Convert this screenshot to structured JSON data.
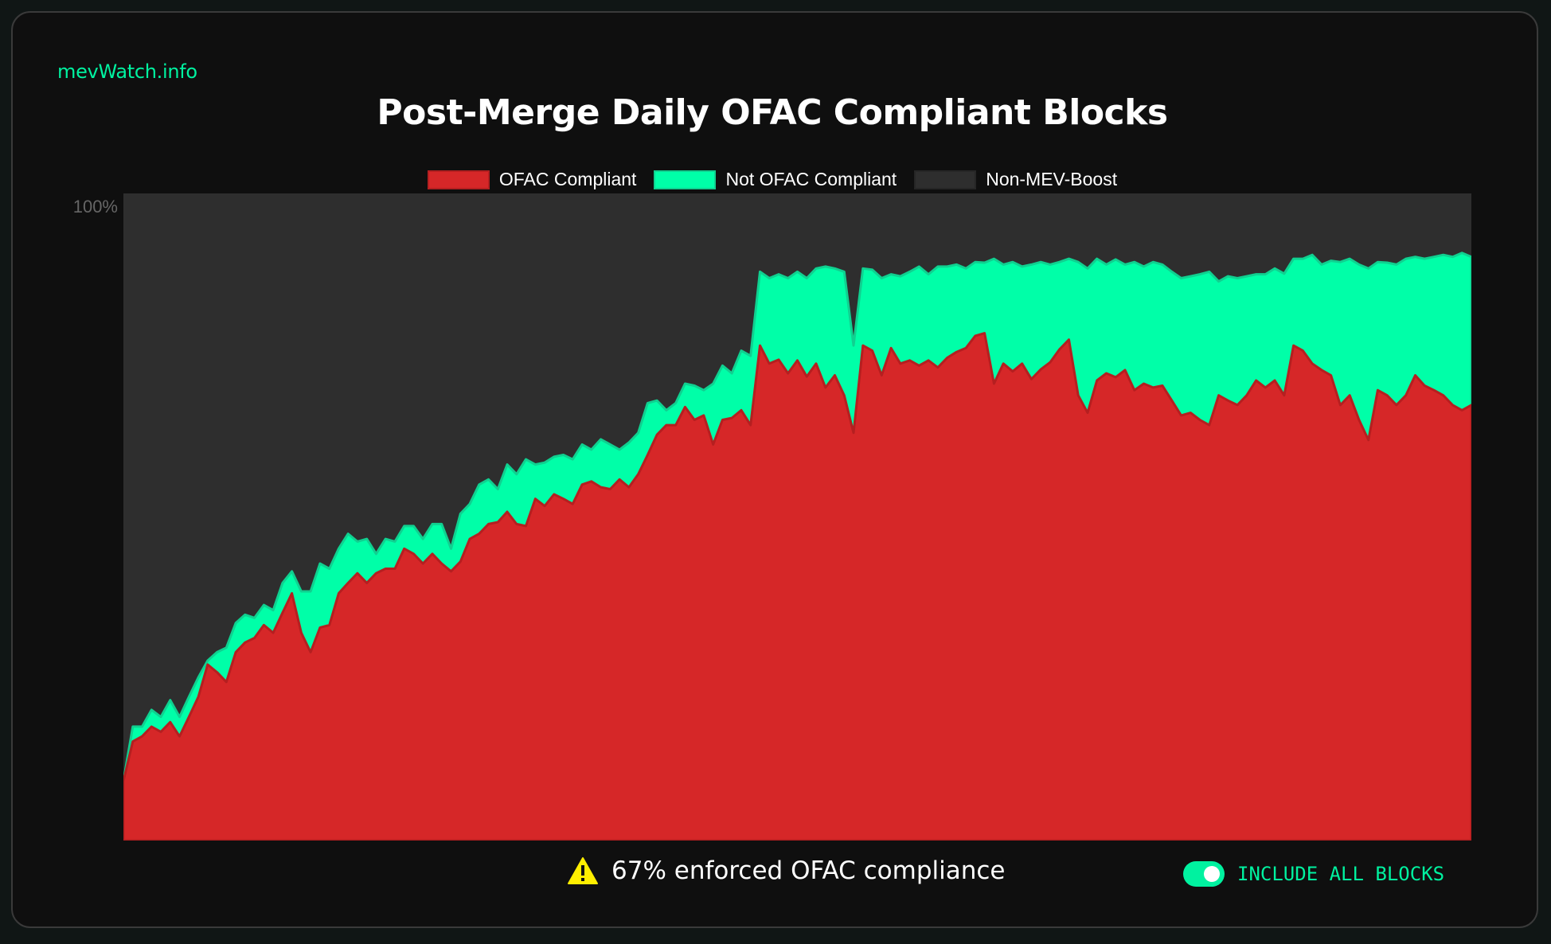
{
  "brand": "mevWatch.info",
  "footer": {
    "warning_icon": "warning-triangle-icon",
    "note": "67% enforced OFAC compliance",
    "toggle_label": "INCLUDE ALL BLOCKS",
    "toggle_on": true
  },
  "colors": {
    "ofac": "#d62728",
    "not_ofac": "#00ffa8",
    "non_mev": "#2e2e2e",
    "accent": "#00f2a0"
  },
  "chart_data": {
    "type": "area",
    "stacked": true,
    "title": "Post-Merge Daily OFAC Compliant Blocks",
    "xlabel": "",
    "ylabel": "",
    "ylim": [
      0,
      100
    ],
    "y_ticks": [
      "100%"
    ],
    "legend_position": "top-center",
    "legend": [
      "OFAC Compliant",
      "Not OFAC Compliant",
      "Non-MEV-Boost"
    ],
    "x": "day index 1..145",
    "series": [
      {
        "name": "OFAC Compliant",
        "values": [
          9.2,
          15.3,
          16.1,
          17.6,
          16.8,
          18.3,
          16.1,
          19.1,
          22.2,
          27.2,
          26.0,
          24.5,
          29.1,
          30.6,
          31.3,
          33.3,
          32.1,
          35.2,
          38.2,
          32.1,
          29.1,
          32.9,
          33.3,
          38.2,
          39.8,
          41.3,
          39.8,
          41.3,
          42.0,
          42.0,
          45.1,
          44.3,
          42.8,
          44.3,
          42.8,
          41.6,
          43.1,
          46.6,
          47.4,
          48.9,
          49.2,
          50.8,
          48.9,
          48.6,
          52.8,
          51.7,
          53.5,
          52.8,
          52.0,
          55.0,
          55.5,
          54.6,
          54.3,
          55.8,
          54.6,
          56.6,
          59.6,
          62.7,
          64.2,
          64.2,
          67.0,
          65.0,
          65.7,
          61.2,
          65.0,
          65.3,
          66.5,
          64.2,
          76.5,
          73.7,
          74.3,
          72.2,
          74.2,
          71.7,
          73.7,
          70.0,
          71.9,
          68.8,
          63.0,
          76.5,
          75.7,
          71.9,
          76.1,
          73.7,
          74.2,
          73.4,
          74.2,
          73.1,
          74.6,
          75.5,
          76.1,
          78.0,
          78.4,
          70.6,
          73.7,
          72.5,
          73.7,
          71.3,
          72.8,
          73.9,
          75.9,
          77.4,
          68.8,
          66.1,
          71.1,
          72.2,
          71.6,
          72.7,
          69.6,
          70.6,
          70.0,
          70.3,
          68.0,
          65.7,
          66.1,
          65.0,
          64.2,
          68.8,
          68.0,
          67.3,
          68.8,
          71.1,
          70.0,
          71.1,
          68.8,
          76.5,
          75.7,
          73.7,
          72.7,
          71.9,
          67.3,
          68.8,
          65.0,
          61.9,
          69.6,
          68.8,
          67.3,
          68.8,
          71.9,
          70.3,
          69.6,
          68.8,
          67.3,
          66.5,
          67.3
        ]
      },
      {
        "name": "Not OFAC Compliant",
        "values": [
          0,
          2.3,
          1.5,
          2.6,
          2.3,
          3.4,
          3.0,
          3.1,
          3.0,
          0.6,
          3.1,
          5.3,
          4.5,
          4.3,
          3.1,
          3.1,
          3.5,
          4.6,
          3.4,
          6.4,
          9.4,
          9.9,
          8.7,
          6.9,
          7.6,
          4.9,
          6.8,
          3.0,
          4.6,
          4.2,
          3.5,
          4.3,
          3.8,
          4.6,
          6.1,
          3.5,
          7.4,
          5.4,
          7.6,
          6.9,
          5.1,
          7.3,
          7.7,
          10.3,
          5.3,
          6.7,
          5.8,
          6.8,
          6.9,
          6.2,
          4.9,
          7.4,
          6.9,
          4.6,
          6.9,
          6.4,
          8.0,
          5.3,
          2.3,
          3.4,
          3.6,
          5.3,
          3.9,
          9.4,
          8.4,
          6.9,
          9.2,
          10.7,
          11.4,
          13.2,
          13.2,
          14.7,
          13.7,
          15.2,
          14.7,
          18.7,
          16.5,
          19.1,
          13.5,
          11.9,
          12.5,
          15.0,
          11.4,
          13.5,
          13.7,
          15.3,
          13.3,
          15.6,
          14.1,
          13.5,
          12.3,
          11.4,
          10.9,
          19.3,
          15.3,
          16.9,
          15.0,
          17.7,
          16.6,
          15.1,
          13.5,
          12.5,
          20.6,
          22.3,
          18.8,
          16.8,
          18.2,
          16.3,
          19.8,
          18.1,
          19.4,
          18.7,
          19.9,
          21.2,
          21.1,
          22.5,
          23.7,
          17.6,
          19.2,
          19.6,
          18.4,
          16.4,
          17.5,
          17.3,
          18.8,
          13.4,
          14.2,
          16.8,
          16.3,
          17.7,
          22.1,
          21.1,
          24.0,
          26.5,
          19.8,
          20.5,
          21.7,
          21.1,
          18.3,
          19.6,
          20.6,
          21.7,
          22.9,
          24.3,
          22.9
        ]
      },
      {
        "name": "Non-MEV-Boost",
        "values": "remainder to 100%"
      }
    ]
  }
}
